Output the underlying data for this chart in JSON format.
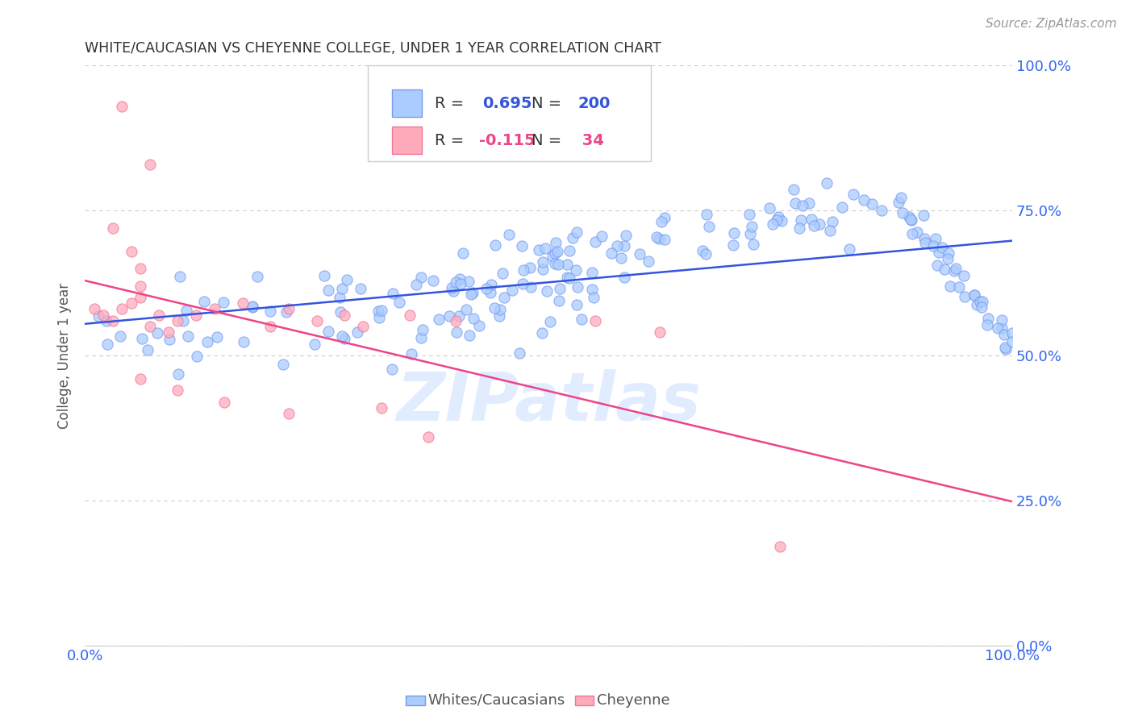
{
  "title": "WHITE/CAUCASIAN VS CHEYENNE COLLEGE, UNDER 1 YEAR CORRELATION CHART",
  "source": "Source: ZipAtlas.com",
  "ylabel": "College, Under 1 year",
  "ytick_labels": [
    "0.0%",
    "25.0%",
    "50.0%",
    "75.0%",
    "100.0%"
  ],
  "ytick_values": [
    0.0,
    0.25,
    0.5,
    0.75,
    1.0
  ],
  "xlim": [
    0.0,
    1.0
  ],
  "ylim": [
    0.0,
    1.0
  ],
  "blue_dot_face": "#AACCFF",
  "blue_dot_edge": "#7799EE",
  "pink_dot_face": "#FFAABB",
  "pink_dot_edge": "#EE7799",
  "blue_line_color": "#3355DD",
  "pink_line_color": "#EE4488",
  "axis_tick_color": "#3366EE",
  "title_color": "#333333",
  "source_color": "#999999",
  "ylabel_color": "#555555",
  "background_color": "#FFFFFF",
  "grid_color": "#CCCCCC",
  "watermark_color": "#AACCFF",
  "watermark_text": "ZIPatlas",
  "legend_box_edge": "#CCCCCC",
  "blue_R_text": "0.695",
  "blue_N_text": "200",
  "pink_R_text": "-0.115",
  "pink_N_text": "34",
  "blue_N": 200,
  "pink_N": 34,
  "blue_R": 0.695,
  "pink_R": -0.115,
  "bottom_label_blue": "Whites/Caucasians",
  "bottom_label_pink": "Cheyenne"
}
